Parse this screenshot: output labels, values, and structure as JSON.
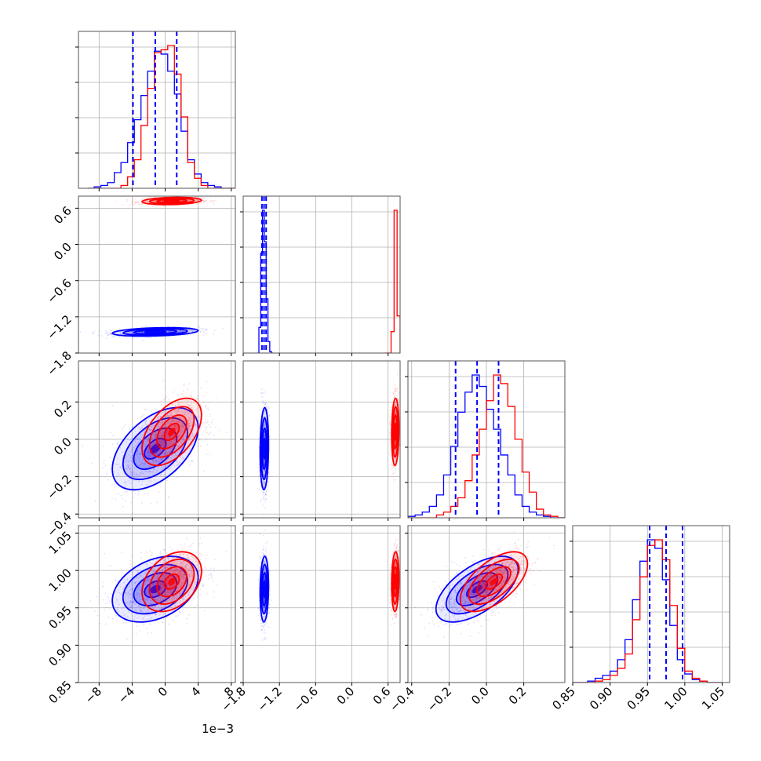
{
  "colors": {
    "series_a": "#0000ff",
    "series_b": "#ff0000",
    "grid": "#b0b0b0"
  },
  "chart_data": {
    "type": "corner",
    "grid": true,
    "n_params": 4,
    "params": [
      {
        "range": [
          -0.0105,
          0.0085
        ],
        "ticks": [
          -0.008,
          -0.004,
          0.0,
          0.004,
          0.008
        ],
        "tick_labels": [
          "−8",
          "−4",
          "0",
          "4",
          "8"
        ],
        "offset_label": "1e−3"
      },
      {
        "range": [
          -1.8,
          0.8
        ],
        "ticks": [
          -1.8,
          -1.2,
          -0.6,
          0.0,
          0.6
        ],
        "tick_labels": [
          "−1.8",
          "−1.2",
          "−0.6",
          "0.0",
          "0.6"
        ],
        "offset_label": ""
      },
      {
        "range": [
          -0.42,
          0.42
        ],
        "ticks": [
          -0.4,
          -0.2,
          0.0,
          0.2
        ],
        "tick_labels": [
          "−0.4",
          "−0.2",
          "0.0",
          "0.2"
        ],
        "offset_label": ""
      },
      {
        "range": [
          0.85,
          1.06
        ],
        "ticks": [
          0.85,
          0.9,
          0.95,
          1.0,
          1.05
        ],
        "tick_labels": [
          "0.85",
          "0.90",
          "0.95",
          "1.00",
          "1.05"
        ],
        "offset_label": ""
      }
    ],
    "series": [
      {
        "color": "#0000ff",
        "means": [
          -0.0012,
          -1.45,
          -0.05,
          0.975
        ],
        "stds": [
          0.0026,
          0.035,
          0.11,
          0.022
        ],
        "corr": [
          [
            0,
            1,
            0.3
          ],
          [
            0,
            2,
            0.5
          ],
          [
            0,
            3,
            0.35
          ],
          [
            1,
            2,
            0.1
          ],
          [
            1,
            3,
            0.1
          ],
          [
            2,
            3,
            0.6
          ]
        ],
        "quantiles": [
          [
            -0.0039,
            -0.0012,
            0.0014
          ],
          [
            -1.49,
            -1.455,
            -1.42
          ],
          [
            -0.165,
            -0.05,
            0.065
          ],
          [
            0.953,
            0.975,
            0.997
          ]
        ],
        "hist": [
          {
            "edges": [
              -0.0094,
              0.0084
            ],
            "counts": [
              0,
              1,
              2,
              4,
              11,
              18,
              32,
              48,
              65,
              82,
              96,
              94,
              82,
              66,
              40,
              20,
              10,
              4,
              2,
              1,
              0,
              0
            ]
          },
          {
            "edges": [
              -1.57,
              -1.3
            ],
            "counts": [
              0,
              18,
              70,
              100,
              78,
              38,
              8,
              1,
              0
            ]
          },
          {
            "edges": [
              -0.42,
              0.42
            ],
            "counts": [
              1,
              2,
              4,
              8,
              16,
              30,
              50,
              74,
              88,
              100,
              92,
              76,
              62,
              44,
              30,
              16,
              8,
              4,
              2,
              1,
              0,
              0
            ]
          },
          {
            "edges": [
              0.85,
              1.05
            ],
            "counts": [
              0,
              0,
              1,
              3,
              5,
              8,
              16,
              30,
              58,
              85,
              100,
              94,
              72,
              40,
              16,
              6,
              2,
              1,
              0,
              0
            ]
          }
        ]
      },
      {
        "color": "#ff0000",
        "means": [
          0.0008,
          0.72,
          0.04,
          0.985
        ],
        "stds": [
          0.0018,
          0.03,
          0.09,
          0.02
        ],
        "corr": [
          [
            0,
            1,
            0.2
          ],
          [
            0,
            2,
            0.5
          ],
          [
            0,
            3,
            0.35
          ],
          [
            1,
            2,
            0.1
          ],
          [
            1,
            3,
            0.1
          ],
          [
            2,
            3,
            0.6
          ]
        ],
        "quantiles": [],
        "hist": [
          {
            "edges": [
              -0.0094,
              0.0084
            ],
            "counts": [
              0,
              0,
              0,
              0,
              0,
              2,
              8,
              20,
              44,
              70,
              95,
              97,
              100,
              80,
              50,
              18,
              7,
              2,
              0,
              0,
              0,
              0
            ]
          },
          {
            "edges": [
              0.55,
              0.8
            ],
            "counts": [
              0,
              0,
              15,
              100,
              26
            ]
          },
          {
            "edges": [
              -0.42,
              0.42
            ],
            "counts": [
              0,
              0,
              0,
              0,
              2,
              4,
              8,
              14,
              26,
              44,
              62,
              82,
              100,
              94,
              78,
              55,
              32,
              18,
              6,
              2,
              1,
              0
            ]
          },
          {
            "edges": [
              0.85,
              1.05
            ],
            "counts": [
              0,
              0,
              0,
              1,
              2,
              5,
              10,
              20,
              44,
              74,
              96,
              100,
              86,
              54,
              24,
              8,
              3,
              1,
              0,
              0
            ]
          }
        ]
      }
    ],
    "contour_levels_sigma": [
      0.5,
      1.0,
      1.5,
      2.0
    ]
  }
}
